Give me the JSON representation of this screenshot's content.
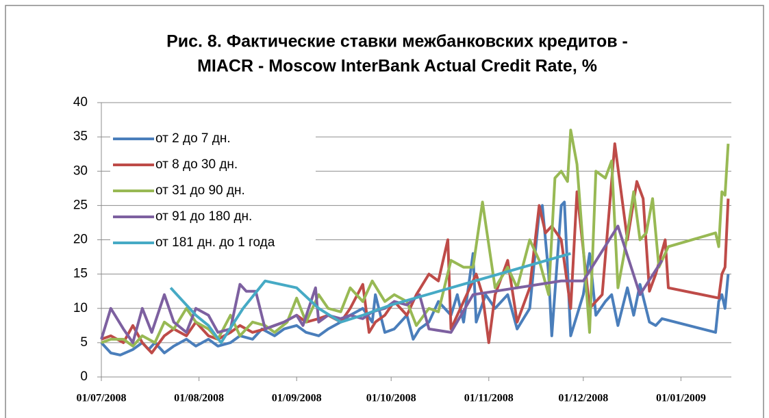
{
  "chart_data": {
    "type": "line",
    "title": [
      "Рис. 8. Фактические ставки межбанковских кредитов -",
      "MIACR - Moscow InterBank Actual Credit Rate, %"
    ],
    "xlim": [
      "01/07/2008",
      "17/01/2009"
    ],
    "xticks": [
      "01/07/2008",
      "01/08/2008",
      "01/09/2008",
      "01/10/2008",
      "01/11/2008",
      "01/12/2008",
      "01/01/2009"
    ],
    "ylim": [
      0,
      40
    ],
    "yticks": [
      0,
      5,
      10,
      15,
      20,
      25,
      30,
      35,
      40
    ],
    "grid": true,
    "legend": "upper-left",
    "series": [
      {
        "name": "от 2 до 7 дн.",
        "color": "#4a7ebb",
        "x": [
          "01/07/2008",
          "04/07/2008",
          "07/07/2008",
          "11/07/2008",
          "14/07/2008",
          "16/07/2008",
          "18/07/2008",
          "21/07/2008",
          "24/07/2008",
          "28/07/2008",
          "31/07/2008",
          "04/08/2008",
          "07/08/2008",
          "11/08/2008",
          "14/08/2008",
          "18/08/2008",
          "21/08/2008",
          "25/08/2008",
          "28/08/2008",
          "01/09/2008",
          "04/09/2008",
          "08/09/2008",
          "11/09/2008",
          "15/09/2008",
          "18/09/2008",
          "22/09/2008",
          "25/09/2008",
          "26/09/2008",
          "29/09/2008",
          "02/10/2008",
          "06/10/2008",
          "08/10/2008",
          "10/10/2008",
          "13/10/2008",
          "16/10/2008",
          "20/10/2008",
          "22/10/2008",
          "24/10/2008",
          "27/10/2008",
          "28/10/2008",
          "31/10/2008",
          "03/11/2008",
          "07/11/2008",
          "10/11/2008",
          "14/11/2008",
          "17/11/2008",
          "18/11/2008",
          "20/11/2008",
          "21/11/2008",
          "24/11/2008",
          "25/11/2008",
          "27/11/2008",
          "01/12/2008",
          "03/12/2008",
          "05/12/2008",
          "08/12/2008",
          "10/12/2008",
          "12/12/2008",
          "15/12/2008",
          "17/12/2008",
          "19/12/2008",
          "22/12/2008",
          "24/12/2008",
          "26/12/2008",
          "12/01/2009",
          "13/01/2009",
          "14/01/2009",
          "15/01/2009",
          "16/01/2009"
        ],
        "values": [
          5,
          3.5,
          3.2,
          4,
          5,
          4,
          5,
          3.5,
          4.5,
          5.5,
          4.5,
          5.5,
          4.5,
          5,
          6,
          5.5,
          7,
          6,
          7,
          7.5,
          6.5,
          6,
          7,
          8,
          9,
          10,
          8,
          12,
          6.5,
          7,
          9,
          5.5,
          7,
          8,
          11,
          9,
          12,
          8,
          18,
          8,
          12,
          10,
          12,
          7,
          10,
          24,
          25,
          15,
          6,
          25,
          25.5,
          6,
          12,
          18,
          9,
          11,
          12,
          7.5,
          13,
          9,
          13.5,
          8,
          7.5,
          8.5,
          6.5,
          11,
          12,
          10,
          15
        ]
      },
      {
        "name": "от 8 до 30 дн.",
        "color": "#be4b48",
        "x": [
          "01/07/2008",
          "04/07/2008",
          "08/07/2008",
          "11/07/2008",
          "14/07/2008",
          "17/07/2008",
          "21/07/2008",
          "24/07/2008",
          "28/07/2008",
          "31/07/2008",
          "04/08/2008",
          "07/08/2008",
          "11/08/2008",
          "14/08/2008",
          "18/08/2008",
          "22/08/2008",
          "25/08/2008",
          "28/08/2008",
          "01/09/2008",
          "04/09/2008",
          "08/09/2008",
          "11/09/2008",
          "15/09/2008",
          "18/09/2008",
          "22/09/2008",
          "24/09/2008",
          "26/09/2008",
          "29/09/2008",
          "02/10/2008",
          "06/10/2008",
          "09/10/2008",
          "13/10/2008",
          "16/10/2008",
          "19/10/2008",
          "20/10/2008",
          "24/10/2008",
          "28/10/2008",
          "30/10/2008",
          "01/11/2008",
          "03/11/2008",
          "07/11/2008",
          "10/11/2008",
          "14/11/2008",
          "17/11/2008",
          "19/11/2008",
          "21/11/2008",
          "24/11/2008",
          "27/11/2008",
          "29/11/2008",
          "03/12/2008",
          "07/12/2008",
          "11/12/2008",
          "13/12/2008",
          "15/12/2008",
          "18/12/2008",
          "20/12/2008",
          "22/12/2008",
          "24/12/2008",
          "27/12/2008",
          "28/12/2008",
          "13/01/2009",
          "14/01/2009",
          "15/01/2009",
          "16/01/2009"
        ],
        "values": [
          5.5,
          6,
          5,
          7.5,
          5,
          3.5,
          6,
          7,
          6,
          8,
          6,
          5.5,
          6.5,
          7.5,
          6.5,
          7,
          7.5,
          8,
          9,
          8,
          8.5,
          9,
          8,
          10,
          13.5,
          6.5,
          8,
          9,
          11,
          9,
          12,
          15,
          14,
          20,
          7,
          11,
          15,
          12,
          5,
          12,
          17,
          8,
          13,
          25,
          21,
          22,
          20,
          10,
          27,
          10,
          12,
          34,
          27,
          20,
          28.5,
          26,
          12.5,
          15,
          20,
          13,
          11.5,
          15,
          16,
          26
        ]
      },
      {
        "name": "от 31 до 90 дн.",
        "color": "#98b954",
        "x": [
          "01/07/2008",
          "04/07/2008",
          "08/07/2008",
          "11/07/2008",
          "14/07/2008",
          "18/07/2008",
          "21/07/2008",
          "24/07/2008",
          "28/07/2008",
          "31/07/2008",
          "04/08/2008",
          "07/08/2008",
          "11/08/2008",
          "14/08/2008",
          "18/08/2008",
          "22/08/2008",
          "25/08/2008",
          "29/08/2008",
          "01/09/2008",
          "04/09/2008",
          "08/09/2008",
          "11/09/2008",
          "15/09/2008",
          "18/09/2008",
          "22/09/2008",
          "25/09/2008",
          "29/09/2008",
          "02/10/2008",
          "06/10/2008",
          "09/10/2008",
          "13/10/2008",
          "16/10/2008",
          "20/10/2008",
          "24/10/2008",
          "27/10/2008",
          "30/10/2008",
          "03/11/2008",
          "07/11/2008",
          "10/11/2008",
          "14/11/2008",
          "17/11/2008",
          "20/11/2008",
          "22/11/2008",
          "24/11/2008",
          "26/11/2008",
          "27/11/2008",
          "29/11/2008",
          "03/12/2008",
          "05/12/2008",
          "08/12/2008",
          "10/12/2008",
          "12/12/2008",
          "14/12/2008",
          "17/12/2008",
          "19/12/2008",
          "21/12/2008",
          "23/12/2008",
          "25/12/2008",
          "28/12/2008",
          "12/01/2009",
          "13/01/2009",
          "14/01/2009",
          "15/01/2009",
          "16/01/2009"
        ],
        "values": [
          5,
          5.5,
          5.5,
          4.5,
          6,
          5,
          8,
          7,
          10,
          8,
          7,
          5.5,
          9,
          6,
          8,
          7.5,
          6.5,
          8,
          11.5,
          8,
          12,
          10,
          9.5,
          13,
          11,
          14,
          11,
          12,
          11,
          7.5,
          10,
          9.5,
          17,
          16,
          16,
          25.5,
          13,
          16,
          13,
          20,
          17,
          12,
          29,
          30,
          28.5,
          36,
          31,
          6.5,
          30,
          29,
          31.5,
          13,
          18,
          27,
          20,
          21,
          26,
          16,
          19,
          21,
          19,
          27,
          26.5,
          34
        ]
      },
      {
        "name": "от 91 до 180 дн.",
        "color": "#7d60a0",
        "x": [
          "01/07/2008",
          "04/07/2008",
          "08/07/2008",
          "11/07/2008",
          "14/07/2008",
          "17/07/2008",
          "21/07/2008",
          "24/07/2008",
          "28/07/2008",
          "31/07/2008",
          "04/08/2008",
          "07/08/2008",
          "11/08/2008",
          "14/08/2008",
          "16/08/2008",
          "19/08/2008",
          "22/08/2008",
          "25/08/2008",
          "28/08/2008",
          "01/09/2008",
          "03/09/2008",
          "07/09/2008",
          "08/09/2008",
          "11/09/2008",
          "15/09/2008",
          "18/09/2008",
          "22/09/2008",
          "25/09/2008",
          "29/09/2008",
          "02/10/2008",
          "06/10/2008",
          "10/10/2008",
          "13/10/2008",
          "20/10/2008",
          "27/10/2008",
          "03/11/2008",
          "10/11/2008",
          "24/11/2008",
          "01/12/2008",
          "12/12/2008",
          "19/12/2008",
          "26/12/2008"
        ],
        "values": [
          5.5,
          10,
          7,
          5,
          10,
          6.5,
          12,
          8,
          6.5,
          10,
          9,
          6.5,
          7,
          13.5,
          12.5,
          12.5,
          7,
          7.5,
          8,
          9,
          7.5,
          13,
          8,
          9,
          8.5,
          9,
          8.5,
          9.5,
          10,
          11,
          10.5,
          12,
          7,
          6.5,
          12,
          12.5,
          13,
          14,
          14,
          22,
          12,
          17
        ]
      },
      {
        "name": "от 181 дн. до 1 года",
        "color": "#46aac5",
        "x": [
          "23/07/2008",
          "27/07/2008",
          "31/07/2008",
          "04/08/2008",
          "08/08/2008",
          "15/08/2008",
          "22/08/2008",
          "01/09/2008",
          "08/09/2008",
          "15/09/2008",
          "22/09/2008",
          "01/10/2008",
          "27/11/2008"
        ],
        "values": [
          13,
          11,
          9,
          7.5,
          5,
          10,
          14,
          13,
          10,
          8,
          9,
          10.5,
          18
        ]
      }
    ]
  }
}
